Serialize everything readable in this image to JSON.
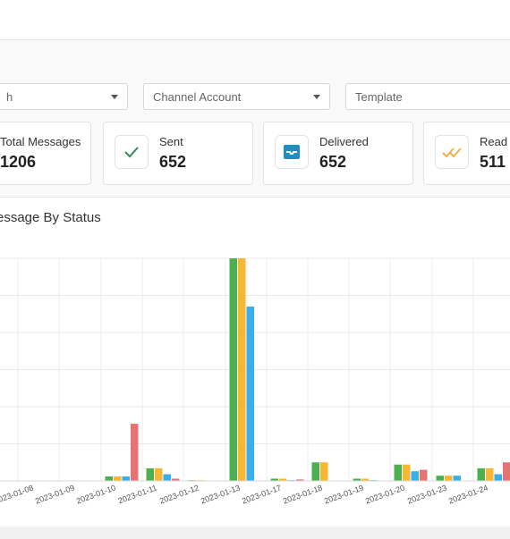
{
  "filters": {
    "first_visible": "h",
    "channel_account": "Channel Account",
    "template": "Template"
  },
  "cards": [
    {
      "label": "Total Messages",
      "value": "1206",
      "icon": "none"
    },
    {
      "label": "Sent",
      "value": "652",
      "icon": "check-icon"
    },
    {
      "label": "Delivered",
      "value": "652",
      "icon": "inbox-icon"
    },
    {
      "label": "Read",
      "value": "511",
      "icon": "double-check-icon"
    }
  ],
  "chart_title": "essage By Status",
  "chart_data": {
    "type": "bar",
    "categories": [
      "2023-01-08",
      "2023-01-09",
      "2023-01-10",
      "2023-01-11",
      "2023-01-12",
      "2023-01-13",
      "2023-01-17",
      "2023-01-18",
      "2023-01-19",
      "2023-01-20",
      "2023-01-23",
      "2023-01-24"
    ],
    "series": [
      {
        "color": "#4caf50",
        "values": [
          0,
          0,
          6,
          17,
          1,
          300,
          3,
          25,
          3,
          22,
          7,
          17
        ]
      },
      {
        "color": "#f7b733",
        "values": [
          0,
          0,
          6,
          17,
          1,
          300,
          3,
          25,
          3,
          22,
          7,
          17
        ]
      },
      {
        "color": "#39aee9",
        "values": [
          0,
          0,
          6,
          9,
          0,
          235,
          1,
          0,
          1,
          13,
          7,
          9
        ]
      },
      {
        "color": "#e57373",
        "values": [
          0,
          0,
          77,
          3,
          0,
          0,
          2,
          0,
          0,
          15,
          0,
          25
        ]
      }
    ],
    "ylim": [
      0,
      300
    ],
    "grid": true
  }
}
